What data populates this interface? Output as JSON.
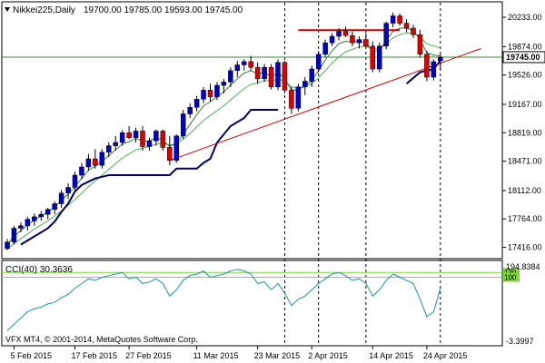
{
  "chart_data": {
    "type": "candlestick",
    "symbol_label": "Nikkei225,Daily",
    "ohlc_label": "19700.00 19785.00 19593.00 19745.00",
    "last_price": 19745.0,
    "last_price_label": "19745.00",
    "price_ylim": [
      17300,
      20400
    ],
    "price_ticks": [
      "20233.00",
      "19874.00",
      "19526.00",
      "19167.00",
      "18819.00",
      "18471.00",
      "18112.00",
      "17764.00",
      "17416.00"
    ],
    "cci_label": "CCI(40) 30.3636",
    "cci_ylim": [
      -330,
      195
    ],
    "cci_ticks": [
      "194.8384",
      "-3.3997"
    ],
    "cci_levels": [
      {
        "value": 130,
        "label": "130"
      },
      {
        "value": 100,
        "label": "100"
      }
    ],
    "footer": "VFX MT4, © 2001-2014, MetaQuotes Software Corp.",
    "x_labels": [
      {
        "i": 1,
        "text": "5 Feb 2015"
      },
      {
        "i": 10,
        "text": "17 Feb 2015"
      },
      {
        "i": 18,
        "text": "27 Feb 2015"
      },
      {
        "i": 28,
        "text": "11 Mar 2015"
      },
      {
        "i": 37,
        "text": "23 Mar 2015"
      },
      {
        "i": 45,
        "text": "2 Apr 2015"
      },
      {
        "i": 54,
        "text": "14 Apr 2015"
      },
      {
        "i": 62,
        "text": "24 Apr 2015"
      }
    ],
    "vlines": [
      41,
      46,
      53,
      64
    ],
    "candles": [
      [
        17400,
        17520,
        17380,
        17480
      ],
      [
        17480,
        17680,
        17450,
        17650
      ],
      [
        17650,
        17720,
        17600,
        17680
      ],
      [
        17680,
        17790,
        17620,
        17760
      ],
      [
        17740,
        17830,
        17680,
        17790
      ],
      [
        17790,
        17860,
        17740,
        17820
      ],
      [
        17820,
        17900,
        17760,
        17880
      ],
      [
        17880,
        17980,
        17820,
        17950
      ],
      [
        17950,
        18120,
        17900,
        18080
      ],
      [
        18080,
        18200,
        18010,
        18150
      ],
      [
        18150,
        18340,
        18100,
        18300
      ],
      [
        18300,
        18450,
        18250,
        18400
      ],
      [
        18400,
        18560,
        18350,
        18500
      ],
      [
        18500,
        18620,
        18380,
        18420
      ],
      [
        18420,
        18620,
        18380,
        18580
      ],
      [
        18580,
        18700,
        18520,
        18660
      ],
      [
        18660,
        18780,
        18600,
        18700
      ],
      [
        18700,
        18850,
        18660,
        18820
      ],
      [
        18820,
        18900,
        18740,
        18760
      ],
      [
        18760,
        18880,
        18700,
        18840
      ],
      [
        18840,
        18900,
        18600,
        18650
      ],
      [
        18650,
        18760,
        18600,
        18720
      ],
      [
        18720,
        18860,
        18660,
        18840
      ],
      [
        18840,
        18860,
        18600,
        18640
      ],
      [
        18640,
        18780,
        18420,
        18480
      ],
      [
        18480,
        18800,
        18450,
        18780
      ],
      [
        18780,
        19100,
        18740,
        19050
      ],
      [
        19050,
        19180,
        19000,
        19130
      ],
      [
        19130,
        19270,
        19080,
        19230
      ],
      [
        19230,
        19380,
        19180,
        19340
      ],
      [
        19340,
        19420,
        19200,
        19260
      ],
      [
        19260,
        19440,
        19220,
        19400
      ],
      [
        19400,
        19480,
        19300,
        19440
      ],
      [
        19440,
        19620,
        19380,
        19580
      ],
      [
        19580,
        19700,
        19500,
        19650
      ],
      [
        19650,
        19720,
        19580,
        19690
      ],
      [
        19690,
        19760,
        19580,
        19620
      ],
      [
        19620,
        19680,
        19420,
        19480
      ],
      [
        19480,
        19660,
        19440,
        19620
      ],
      [
        19620,
        19660,
        19350,
        19380
      ],
      [
        19380,
        19720,
        19340,
        19680
      ],
      [
        19680,
        19700,
        19300,
        19340
      ],
      [
        19340,
        19380,
        19050,
        19120
      ],
      [
        19120,
        19420,
        19080,
        19380
      ],
      [
        19380,
        19500,
        19280,
        19450
      ],
      [
        19450,
        19640,
        19380,
        19600
      ],
      [
        19600,
        19820,
        19560,
        19780
      ],
      [
        19780,
        19960,
        19740,
        19920
      ],
      [
        19920,
        20040,
        19880,
        20000
      ],
      [
        20000,
        20100,
        19950,
        20060
      ],
      [
        20060,
        20120,
        19990,
        20010
      ],
      [
        20010,
        20060,
        19880,
        19920
      ],
      [
        19920,
        20000,
        19850,
        19960
      ],
      [
        19960,
        20040,
        19860,
        19880
      ],
      [
        19880,
        19940,
        19560,
        19600
      ],
      [
        19600,
        19920,
        19560,
        19880
      ],
      [
        19880,
        20180,
        19840,
        20160
      ],
      [
        20160,
        20290,
        20110,
        20250
      ],
      [
        20250,
        20280,
        20130,
        20160
      ],
      [
        20160,
        20210,
        20050,
        20100
      ],
      [
        20100,
        20140,
        19980,
        20020
      ],
      [
        20020,
        20080,
        19740,
        19780
      ],
      [
        19780,
        19820,
        19450,
        19500
      ],
      [
        19500,
        19720,
        19460,
        19690
      ],
      [
        19700,
        19785,
        19593,
        19745
      ]
    ],
    "ema_fast": [
      17450,
      17550,
      17620,
      17690,
      17750,
      17800,
      17850,
      17910,
      17990,
      18070,
      18160,
      18260,
      18360,
      18410,
      18470,
      18540,
      18610,
      18680,
      18710,
      18750,
      18720,
      18720,
      18760,
      18730,
      18650,
      18690,
      18800,
      18920,
      19040,
      19150,
      19200,
      19260,
      19320,
      19400,
      19480,
      19550,
      19580,
      19540,
      19560,
      19500,
      19560,
      19480,
      19340,
      19350,
      19390,
      19460,
      19580,
      19710,
      19820,
      19910,
      19940,
      19930,
      19940,
      19920,
      19810,
      19830,
      19950,
      20060,
      20100,
      20100,
      20070,
      19960,
      19800,
      19770,
      19760
    ],
    "ema_slow": [
      17400,
      17460,
      17520,
      17580,
      17640,
      17690,
      17740,
      17800,
      17860,
      17930,
      18000,
      18080,
      18160,
      18230,
      18300,
      18370,
      18440,
      18510,
      18560,
      18610,
      18630,
      18650,
      18680,
      18690,
      18670,
      18680,
      18740,
      18810,
      18890,
      18970,
      19030,
      19090,
      19150,
      19220,
      19290,
      19360,
      19410,
      19430,
      19460,
      19450,
      19480,
      19450,
      19380,
      19370,
      19380,
      19420,
      19490,
      19580,
      19670,
      19750,
      19810,
      19840,
      19870,
      19880,
      19840,
      19850,
      19910,
      19980,
      20020,
      20040,
      20040,
      19990,
      19910,
      19880,
      19860
    ],
    "trail_line": [
      null,
      null,
      17450,
      17500,
      17550,
      17600,
      17650,
      17730,
      17850,
      17950,
      18100,
      18180,
      18220,
      18260,
      18280,
      18300,
      18300,
      18300,
      18300,
      18300,
      18300,
      18300,
      18300,
      18300,
      18300,
      18380,
      18380,
      18380,
      18380,
      18450,
      18500,
      18700,
      18800,
      18900,
      18950,
      19000,
      19100,
      19100,
      19100,
      19100,
      19100,
      null,
      null,
      null,
      null,
      null,
      null,
      null,
      null,
      null,
      null,
      null,
      null,
      null,
      null,
      null,
      null,
      null,
      null,
      null,
      null,
      null,
      null,
      null,
      null
    ],
    "trail_line2": [
      [
        59,
        19420
      ],
      [
        61,
        19560
      ],
      [
        62,
        19580
      ],
      [
        63,
        19600
      ],
      [
        64,
        19700
      ]
    ],
    "resistance_line": {
      "from": [
        43,
        20075
      ],
      "to": [
        58,
        20075
      ]
    },
    "support_trendline": {
      "from": [
        24,
        18480
      ],
      "to": [
        70,
        19850
      ]
    },
    "cci": [
      -240,
      -200,
      -160,
      -120,
      -100,
      -90,
      -70,
      -60,
      -30,
      -10,
      30,
      60,
      90,
      80,
      100,
      110,
      120,
      130,
      90,
      100,
      60,
      70,
      90,
      60,
      -20,
      20,
      80,
      110,
      120,
      140,
      100,
      110,
      120,
      140,
      150,
      140,
      120,
      60,
      70,
      20,
      60,
      0,
      -80,
      -40,
      -20,
      20,
      60,
      90,
      120,
      130,
      110,
      80,
      90,
      60,
      -20,
      20,
      80,
      120,
      100,
      80,
      60,
      -40,
      -150,
      -120,
      30
    ]
  }
}
